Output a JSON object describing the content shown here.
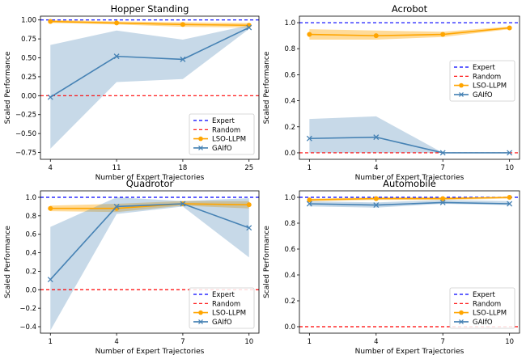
{
  "chart_data": [
    {
      "type": "line",
      "title": "Hopper Standing",
      "xlabel": "Number of Expert Trajectories",
      "ylabel": "Scaled Performance",
      "x": [
        4,
        11,
        18,
        25
      ],
      "xticks": [
        "4",
        "11",
        "18",
        "25"
      ],
      "xlim": [
        2.95,
        26.05
      ],
      "ylim": [
        -0.84,
        1.05
      ],
      "yticks": [
        -0.75,
        -0.5,
        -0.25,
        0.0,
        0.25,
        0.5,
        0.75,
        1.0
      ],
      "ytick_labels": [
        "−0.75",
        "−0.50",
        "−0.25",
        "0.00",
        "0.25",
        "0.50",
        "0.75",
        "1.00"
      ],
      "hlines": [
        {
          "name": "Expert",
          "y": 1.0,
          "color": "#0000ff"
        },
        {
          "name": "Random",
          "y": 0.0,
          "color": "#ff0000"
        }
      ],
      "series": [
        {
          "name": "LSO-LLPM",
          "color": "#ffa500",
          "marker": "o",
          "values": [
            0.98,
            0.96,
            0.94,
            0.93
          ],
          "lower": [
            0.96,
            0.94,
            0.91,
            0.9
          ],
          "upper": [
            1.0,
            0.98,
            0.97,
            0.96
          ]
        },
        {
          "name": "GAIfO",
          "color": "#4682b4",
          "marker": "x",
          "values": [
            -0.02,
            0.52,
            0.48,
            0.9
          ],
          "lower": [
            -0.7,
            0.18,
            0.22,
            0.88
          ],
          "upper": [
            0.67,
            0.86,
            0.74,
            0.93
          ]
        }
      ],
      "legend": "lower-right"
    },
    {
      "type": "line",
      "title": "Acrobot",
      "xlabel": "Number of Expert Trajectories",
      "ylabel": "Scaled Performance",
      "x": [
        1,
        4,
        7,
        10
      ],
      "xticks": [
        "1",
        "4",
        "7",
        "10"
      ],
      "xlim": [
        0.55,
        10.45
      ],
      "ylim": [
        -0.05,
        1.05
      ],
      "yticks": [
        0.0,
        0.2,
        0.4,
        0.6,
        0.8,
        1.0
      ],
      "ytick_labels": [
        "0.0",
        "0.2",
        "0.4",
        "0.6",
        "0.8",
        "1.0"
      ],
      "hlines": [
        {
          "name": "Expert",
          "y": 1.0,
          "color": "#0000ff"
        },
        {
          "name": "Random",
          "y": 0.0,
          "color": "#ff0000"
        }
      ],
      "series": [
        {
          "name": "LSO-LLPM",
          "color": "#ffa500",
          "marker": "o",
          "values": [
            0.91,
            0.9,
            0.91,
            0.96
          ],
          "lower": [
            0.87,
            0.87,
            0.89,
            0.95
          ],
          "upper": [
            0.95,
            0.94,
            0.93,
            0.97
          ]
        },
        {
          "name": "GAIfO",
          "color": "#4682b4",
          "marker": "x",
          "values": [
            0.11,
            0.12,
            0.0,
            0.0
          ],
          "lower": [
            0.0,
            0.0,
            0.0,
            0.0
          ],
          "upper": [
            0.26,
            0.28,
            0.0,
            0.0
          ]
        }
      ],
      "legend": "center-right"
    },
    {
      "type": "line",
      "title": "Quadrotor",
      "xlabel": "Number of Expert Trajectories",
      "ylabel": "Scaled Performance",
      "x": [
        1,
        4,
        7,
        10
      ],
      "xticks": [
        "1",
        "4",
        "7",
        "10"
      ],
      "xlim": [
        0.55,
        10.45
      ],
      "ylim": [
        -0.47,
        1.07
      ],
      "yticks": [
        -0.4,
        -0.2,
        0.0,
        0.2,
        0.4,
        0.6,
        0.8,
        1.0
      ],
      "ytick_labels": [
        "−0.4",
        "−0.2",
        "0.0",
        "0.2",
        "0.4",
        "0.6",
        "0.8",
        "1.0"
      ],
      "hlines": [
        {
          "name": "Expert",
          "y": 1.0,
          "color": "#0000ff"
        },
        {
          "name": "Random",
          "y": 0.0,
          "color": "#ff0000"
        }
      ],
      "series": [
        {
          "name": "LSO-LLPM",
          "color": "#ffa500",
          "marker": "o",
          "values": [
            0.88,
            0.88,
            0.93,
            0.92
          ],
          "lower": [
            0.85,
            0.84,
            0.91,
            0.88
          ],
          "upper": [
            0.91,
            0.93,
            0.96,
            0.96
          ]
        },
        {
          "name": "GAIfO",
          "color": "#4682b4",
          "marker": "x",
          "values": [
            0.11,
            0.9,
            0.93,
            0.67
          ],
          "lower": [
            -0.44,
            0.82,
            0.9,
            0.35
          ],
          "upper": [
            0.68,
            1.0,
            0.96,
            0.99
          ]
        }
      ],
      "legend": "lower-right"
    },
    {
      "type": "line",
      "title": "Automobile",
      "xlabel": "Number of Expert Trajectories",
      "ylabel": "Scaled Performance",
      "x": [
        1,
        4,
        7,
        10
      ],
      "xticks": [
        "1",
        "4",
        "7",
        "10"
      ],
      "xlim": [
        0.55,
        10.45
      ],
      "ylim": [
        -0.05,
        1.05
      ],
      "yticks": [
        0.0,
        0.2,
        0.4,
        0.6,
        0.8,
        1.0
      ],
      "ytick_labels": [
        "0.0",
        "0.2",
        "0.4",
        "0.6",
        "0.8",
        "1.0"
      ],
      "hlines": [
        {
          "name": "Expert",
          "y": 1.0,
          "color": "#0000ff"
        },
        {
          "name": "Random",
          "y": 0.0,
          "color": "#ff0000"
        }
      ],
      "series": [
        {
          "name": "LSO-LLPM",
          "color": "#ffa500",
          "marker": "o",
          "values": [
            0.98,
            0.99,
            0.99,
            1.0
          ],
          "lower": [
            0.97,
            0.98,
            0.98,
            0.99
          ],
          "upper": [
            0.99,
            1.0,
            1.0,
            1.0
          ]
        },
        {
          "name": "GAIfO",
          "color": "#4682b4",
          "marker": "x",
          "values": [
            0.95,
            0.94,
            0.96,
            0.95
          ],
          "lower": [
            0.93,
            0.92,
            0.95,
            0.94
          ],
          "upper": [
            0.97,
            0.96,
            0.98,
            0.97
          ]
        }
      ],
      "legend": "lower-right"
    }
  ]
}
